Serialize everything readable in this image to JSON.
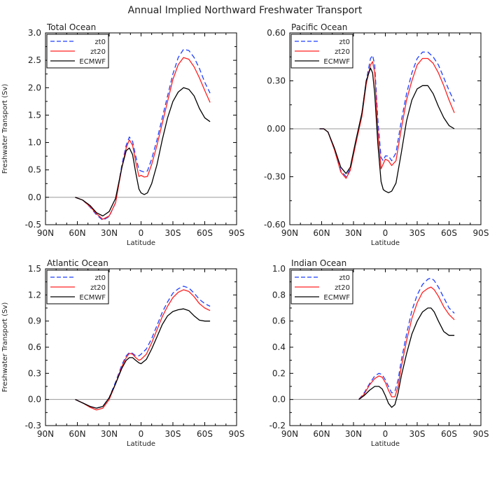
{
  "figure_title": "Annual Implied Northward Freshwater Transport",
  "colors": {
    "zt0": "#1f3fff",
    "zt20": "#ff2020",
    "ECMWF": "#000000",
    "zero": "#999999",
    "frame": "#000000"
  },
  "chart_data": [
    {
      "type": "line",
      "title": "Total Ocean",
      "xlabel": "Latitude",
      "ylabel": "Freshwater Transport (Sv)",
      "xlim": [
        -90,
        90
      ],
      "xticks": [
        -90,
        -60,
        -30,
        0,
        30,
        60,
        90
      ],
      "xtick_labels": [
        "90N",
        "60N",
        "30N",
        "0",
        "30S",
        "60S",
        "90S"
      ],
      "ylim": [
        -0.5,
        3.0
      ],
      "yticks": [
        -0.5,
        0.0,
        0.5,
        1.0,
        1.5,
        2.0,
        2.5,
        3.0
      ],
      "ytick_labels": [
        "-0.5",
        "0.0",
        "0.5",
        "1.0",
        "1.5",
        "2.0",
        "2.5",
        "3.0"
      ],
      "legend": [
        "zt0",
        "zt20",
        "ECMWF"
      ],
      "series": [
        {
          "name": "zt0",
          "style": "dashed",
          "x": [
            -62,
            -55,
            -48,
            -42,
            -36,
            -30,
            -24,
            -18,
            -14,
            -11,
            -8,
            -5,
            -2,
            0,
            3,
            6,
            10,
            15,
            20,
            25,
            30,
            35,
            40,
            45,
            50,
            55,
            60,
            65
          ],
          "y": [
            0,
            -0.05,
            -0.18,
            -0.32,
            -0.42,
            -0.35,
            -0.1,
            0.6,
            0.95,
            1.1,
            1.02,
            0.75,
            0.5,
            0.48,
            0.46,
            0.48,
            0.7,
            1.05,
            1.45,
            1.85,
            2.25,
            2.55,
            2.7,
            2.68,
            2.55,
            2.35,
            2.1,
            1.9
          ]
        },
        {
          "name": "zt20",
          "style": "solid",
          "x": [
            -62,
            -55,
            -48,
            -42,
            -36,
            -30,
            -24,
            -18,
            -14,
            -11,
            -8,
            -5,
            -2,
            0,
            3,
            6,
            10,
            15,
            20,
            25,
            30,
            35,
            40,
            45,
            50,
            55,
            60,
            65
          ],
          "y": [
            0,
            -0.05,
            -0.17,
            -0.3,
            -0.4,
            -0.34,
            -0.1,
            0.55,
            0.9,
            1.05,
            0.95,
            0.65,
            0.38,
            0.4,
            0.37,
            0.38,
            0.6,
            0.95,
            1.35,
            1.75,
            2.15,
            2.42,
            2.55,
            2.52,
            2.38,
            2.18,
            1.95,
            1.73
          ]
        },
        {
          "name": "ECMWF",
          "style": "solid",
          "x": [
            -62,
            -55,
            -48,
            -42,
            -36,
            -30,
            -24,
            -18,
            -14,
            -11,
            -8,
            -5,
            -2,
            0,
            3,
            6,
            10,
            15,
            20,
            25,
            30,
            35,
            40,
            45,
            50,
            55,
            60,
            65
          ],
          "y": [
            0,
            -0.05,
            -0.15,
            -0.28,
            -0.34,
            -0.26,
            -0.02,
            0.55,
            0.85,
            0.9,
            0.78,
            0.45,
            0.15,
            0.08,
            0.05,
            0.08,
            0.25,
            0.6,
            1.05,
            1.45,
            1.75,
            1.92,
            2.0,
            1.97,
            1.85,
            1.62,
            1.45,
            1.38
          ]
        }
      ]
    },
    {
      "type": "line",
      "title": "Pacific Ocean",
      "xlabel": "Latitude",
      "ylabel": "",
      "xlim": [
        -90,
        90
      ],
      "xticks": [
        -90,
        -60,
        -30,
        0,
        30,
        60,
        90
      ],
      "xtick_labels": [
        "90N",
        "60N",
        "30N",
        "0",
        "30S",
        "60S",
        "90S"
      ],
      "ylim": [
        -0.6,
        0.6
      ],
      "yticks": [
        -0.6,
        -0.3,
        0.0,
        0.3,
        0.6
      ],
      "ytick_labels": [
        "-0.60",
        "-0.30",
        "0.00",
        "0.30",
        "0.60"
      ],
      "legend": [
        "zt0",
        "zt20",
        "ECMWF"
      ],
      "series": [
        {
          "name": "zt0",
          "style": "dashed",
          "x": [
            -62,
            -58,
            -54,
            -48,
            -42,
            -37,
            -33,
            -28,
            -22,
            -18,
            -14,
            -12,
            -10,
            -7,
            -4,
            -2,
            0,
            3,
            6,
            10,
            15,
            20,
            25,
            30,
            35,
            40,
            45,
            50,
            55,
            60,
            65
          ],
          "y": [
            0,
            0,
            -0.02,
            -0.13,
            -0.26,
            -0.3,
            -0.25,
            -0.1,
            0.1,
            0.3,
            0.44,
            0.46,
            0.4,
            0.05,
            -0.18,
            -0.2,
            -0.17,
            -0.17,
            -0.2,
            -0.15,
            0.05,
            0.22,
            0.35,
            0.44,
            0.48,
            0.48,
            0.45,
            0.4,
            0.32,
            0.24,
            0.17
          ]
        },
        {
          "name": "zt20",
          "style": "solid",
          "x": [
            -62,
            -58,
            -54,
            -48,
            -42,
            -37,
            -33,
            -28,
            -22,
            -18,
            -14,
            -12,
            -10,
            -7,
            -4,
            -2,
            0,
            3,
            6,
            10,
            15,
            20,
            25,
            30,
            35,
            40,
            45,
            50,
            55,
            60,
            65
          ],
          "y": [
            0,
            0,
            -0.02,
            -0.13,
            -0.27,
            -0.31,
            -0.26,
            -0.1,
            0.08,
            0.28,
            0.4,
            0.42,
            0.35,
            -0.02,
            -0.25,
            -0.22,
            -0.19,
            -0.2,
            -0.23,
            -0.2,
            0.0,
            0.18,
            0.3,
            0.4,
            0.44,
            0.44,
            0.41,
            0.35,
            0.27,
            0.18,
            0.1
          ]
        },
        {
          "name": "ECMWF",
          "style": "solid",
          "x": [
            -62,
            -58,
            -54,
            -48,
            -42,
            -37,
            -33,
            -28,
            -22,
            -18,
            -14,
            -12,
            -10,
            -7,
            -4,
            -2,
            0,
            3,
            6,
            10,
            15,
            20,
            25,
            30,
            35,
            40,
            45,
            50,
            55,
            60,
            65
          ],
          "y": [
            0,
            0,
            -0.02,
            -0.12,
            -0.24,
            -0.28,
            -0.24,
            -0.08,
            0.1,
            0.3,
            0.38,
            0.35,
            0.22,
            -0.1,
            -0.33,
            -0.38,
            -0.39,
            -0.4,
            -0.39,
            -0.34,
            -0.15,
            0.05,
            0.18,
            0.25,
            0.27,
            0.27,
            0.22,
            0.14,
            0.07,
            0.02,
            0.0
          ]
        }
      ]
    },
    {
      "type": "line",
      "title": "Atlantic Ocean",
      "xlabel": "Latitude",
      "ylabel": "Freshwater Transport (Sv)",
      "xlim": [
        -90,
        90
      ],
      "xticks": [
        -90,
        -60,
        -30,
        0,
        30,
        60,
        90
      ],
      "xtick_labels": [
        "90N",
        "60N",
        "30N",
        "0",
        "30S",
        "60S",
        "90S"
      ],
      "ylim": [
        -0.3,
        1.5
      ],
      "yticks": [
        -0.3,
        0.0,
        0.3,
        0.6,
        0.9,
        1.2,
        1.5
      ],
      "ytick_labels": [
        "-0.3",
        "0.0",
        "0.3",
        "0.6",
        "0.9",
        "1.2",
        "1.5"
      ],
      "legend": [
        "zt0",
        "zt20",
        "ECMWF"
      ],
      "series": [
        {
          "name": "zt0",
          "style": "dashed",
          "x": [
            -62,
            -55,
            -48,
            -42,
            -36,
            -30,
            -24,
            -18,
            -14,
            -11,
            -8,
            -5,
            -2,
            0,
            5,
            10,
            15,
            20,
            25,
            30,
            35,
            40,
            45,
            50,
            55,
            60,
            65
          ],
          "y": [
            0,
            -0.04,
            -0.08,
            -0.1,
            -0.08,
            0.02,
            0.2,
            0.4,
            0.5,
            0.54,
            0.53,
            0.5,
            0.5,
            0.52,
            0.58,
            0.7,
            0.85,
            1.0,
            1.12,
            1.22,
            1.27,
            1.3,
            1.28,
            1.22,
            1.15,
            1.1,
            1.07
          ]
        },
        {
          "name": "zt20",
          "style": "solid",
          "x": [
            -62,
            -55,
            -48,
            -42,
            -36,
            -30,
            -24,
            -18,
            -14,
            -11,
            -8,
            -5,
            -2,
            0,
            5,
            10,
            15,
            20,
            25,
            30,
            35,
            40,
            45,
            50,
            55,
            60,
            65
          ],
          "y": [
            0,
            -0.04,
            -0.09,
            -0.12,
            -0.1,
            0.0,
            0.18,
            0.38,
            0.48,
            0.53,
            0.52,
            0.48,
            0.45,
            0.46,
            0.52,
            0.65,
            0.8,
            0.95,
            1.07,
            1.17,
            1.23,
            1.26,
            1.24,
            1.18,
            1.1,
            1.05,
            1.02
          ]
        },
        {
          "name": "ECMWF",
          "style": "solid",
          "x": [
            -62,
            -55,
            -48,
            -42,
            -36,
            -30,
            -24,
            -18,
            -14,
            -11,
            -8,
            -5,
            -2,
            0,
            5,
            10,
            15,
            20,
            25,
            30,
            35,
            40,
            45,
            50,
            55,
            60,
            65
          ],
          "y": [
            0,
            -0.04,
            -0.08,
            -0.1,
            -0.08,
            0.02,
            0.18,
            0.36,
            0.45,
            0.48,
            0.48,
            0.45,
            0.42,
            0.41,
            0.46,
            0.58,
            0.72,
            0.86,
            0.96,
            1.01,
            1.03,
            1.04,
            1.02,
            0.96,
            0.91,
            0.9,
            0.9
          ]
        }
      ]
    },
    {
      "type": "line",
      "title": "Indian Ocean",
      "xlabel": "Latitude",
      "ylabel": "",
      "xlim": [
        -90,
        90
      ],
      "xticks": [
        -90,
        -60,
        -30,
        0,
        30,
        60,
        90
      ],
      "xtick_labels": [
        "90N",
        "60N",
        "30N",
        "0",
        "30S",
        "60S",
        "90S"
      ],
      "ylim": [
        -0.2,
        1.0
      ],
      "yticks": [
        -0.2,
        0.0,
        0.2,
        0.4,
        0.6,
        0.8,
        1.0
      ],
      "ytick_labels": [
        "-0.2",
        "0.0",
        "0.2",
        "0.4",
        "0.6",
        "0.8",
        "1.0"
      ],
      "legend": [
        "zt0",
        "zt20",
        "ECMWF"
      ],
      "series": [
        {
          "name": "zt0",
          "style": "dashed",
          "x": [
            -25,
            -20,
            -15,
            -10,
            -6,
            -3,
            0,
            3,
            6,
            9,
            12,
            15,
            20,
            25,
            30,
            35,
            40,
            43,
            46,
            50,
            55,
            60,
            65
          ],
          "y": [
            0.0,
            0.05,
            0.12,
            0.18,
            0.2,
            0.19,
            0.15,
            0.1,
            0.05,
            0.06,
            0.15,
            0.3,
            0.5,
            0.68,
            0.8,
            0.88,
            0.92,
            0.93,
            0.91,
            0.86,
            0.78,
            0.7,
            0.66
          ]
        },
        {
          "name": "zt20",
          "style": "solid",
          "x": [
            -25,
            -20,
            -15,
            -10,
            -6,
            -3,
            0,
            3,
            6,
            9,
            12,
            15,
            20,
            25,
            30,
            35,
            40,
            43,
            46,
            50,
            55,
            60,
            65
          ],
          "y": [
            0.0,
            0.04,
            0.11,
            0.16,
            0.18,
            0.17,
            0.13,
            0.07,
            0.02,
            0.02,
            0.1,
            0.25,
            0.45,
            0.62,
            0.74,
            0.82,
            0.85,
            0.86,
            0.84,
            0.79,
            0.71,
            0.65,
            0.61
          ]
        },
        {
          "name": "ECMWF",
          "style": "solid",
          "x": [
            -25,
            -20,
            -15,
            -10,
            -6,
            -3,
            0,
            3,
            6,
            9,
            12,
            15,
            20,
            25,
            30,
            35,
            40,
            43,
            46,
            50,
            55,
            60,
            65
          ],
          "y": [
            0.0,
            0.03,
            0.07,
            0.1,
            0.1,
            0.08,
            0.03,
            -0.03,
            -0.06,
            -0.04,
            0.05,
            0.18,
            0.35,
            0.5,
            0.6,
            0.67,
            0.7,
            0.7,
            0.67,
            0.6,
            0.52,
            0.49,
            0.49
          ]
        }
      ]
    }
  ]
}
